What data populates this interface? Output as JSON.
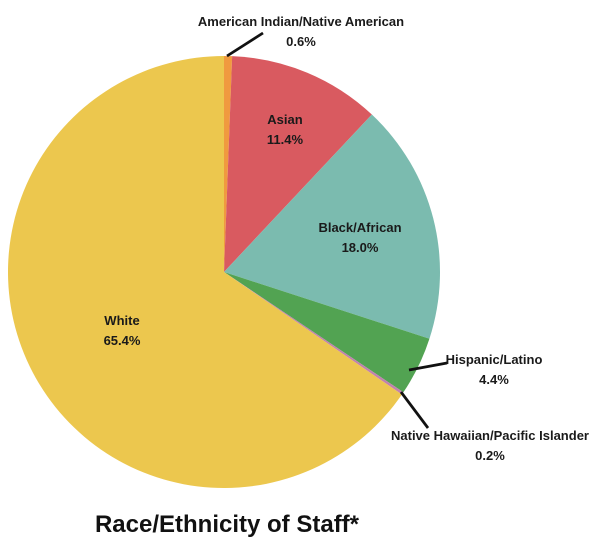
{
  "chart_data": {
    "type": "pie",
    "title": "Race/Ethnicity of Staff*",
    "direction": "clockwise",
    "start_angle_deg": 0,
    "legend_position": "none",
    "center": [
      224,
      272
    ],
    "radius": 216,
    "text_color": "#1a1a1a",
    "leader_color": "#111111",
    "line_gap": 20,
    "slices": [
      {
        "label": "American Indian/Native American",
        "pct_label": "0.6%",
        "value": 0.6,
        "color": "#F09A3F",
        "placement": "outside",
        "label_xy": [
          301,
          21
        ],
        "leader": [
          [
            263,
            33
          ],
          [
            227,
            56
          ]
        ]
      },
      {
        "label": "Asian",
        "pct_label": "11.4%",
        "value": 11.4,
        "color": "#D95A60",
        "placement": "inside",
        "label_xy": [
          285,
          119
        ]
      },
      {
        "label": "Black/African",
        "pct_label": "18.0%",
        "value": 18.0,
        "color": "#7BBBAF",
        "placement": "inside",
        "label_xy": [
          360,
          227
        ]
      },
      {
        "label": "Hispanic/Latino",
        "pct_label": "4.4%",
        "value": 4.4,
        "color": "#52A352",
        "placement": "outside",
        "label_xy": [
          494,
          359
        ],
        "leader": [
          [
            447,
            363
          ],
          [
            409,
            370
          ]
        ]
      },
      {
        "label": "Native Hawaiian/Pacific Islander",
        "pct_label": "0.2%",
        "value": 0.2,
        "color": "#C182AE",
        "placement": "outside",
        "label_xy": [
          490,
          435
        ],
        "leader": [
          [
            401,
            392
          ],
          [
            428,
            428
          ]
        ]
      },
      {
        "label": "White",
        "pct_label": "65.4%",
        "value": 65.4,
        "color": "#ECC74E",
        "placement": "inside",
        "label_xy": [
          122,
          320
        ]
      }
    ]
  }
}
